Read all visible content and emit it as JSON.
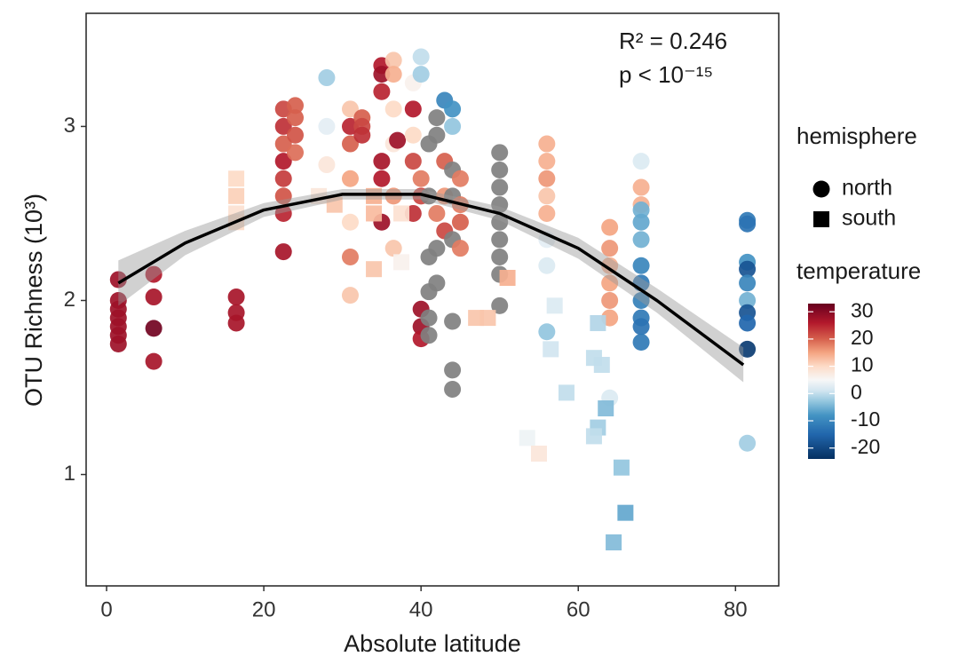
{
  "chart_data": {
    "type": "scatter",
    "annotation": [
      "R² = 0.246",
      "p < 10⁻¹⁵"
    ],
    "x_label": "Absolute latitude",
    "y_label": "OTU Richness (10³)",
    "xlim": [
      -2.6,
      85.5
    ],
    "xticks": [
      0,
      20,
      40,
      60,
      80
    ],
    "ylim": [
      0.36,
      3.65
    ],
    "yticks": [
      1,
      2,
      3
    ],
    "legend_title": "hemisphere",
    "na_color": "#808080",
    "series": [
      {
        "name": "north",
        "shape": "circle",
        "x": [
          1.5,
          1.5,
          1.5,
          1.5,
          1.5,
          1.5,
          1.5,
          6,
          6,
          6,
          6,
          16.5,
          16.5,
          16.5,
          22.5,
          22.5,
          22.5,
          22.5,
          22.5,
          22.5,
          22.5,
          22.5,
          24,
          24,
          24,
          24,
          28,
          28,
          28,
          31,
          31,
          31,
          31,
          31,
          31,
          31,
          32.5,
          32.5,
          32.5,
          35,
          35,
          35,
          35,
          35,
          35,
          36.5,
          36.5,
          36.5,
          36.5,
          36.5,
          36.5,
          37,
          39,
          39,
          39,
          39,
          39,
          40,
          40,
          40,
          40,
          40,
          40,
          40,
          41,
          41,
          41,
          41,
          41,
          41,
          42,
          42,
          42,
          42,
          42,
          43,
          43,
          43,
          43,
          44,
          44,
          44,
          44,
          44,
          44,
          44,
          44,
          45,
          45,
          45,
          45,
          50,
          50,
          50,
          50,
          50,
          50,
          50,
          50,
          50,
          56,
          56,
          56,
          56,
          56,
          56,
          56,
          56,
          64,
          64,
          64,
          64,
          64,
          64,
          64,
          68,
          68,
          68,
          68,
          68,
          68,
          68,
          68,
          68,
          68,
          68,
          68,
          81.5,
          81.5,
          81.5,
          81.5,
          81.5,
          81.5,
          81.5,
          81.5,
          81.5,
          81.5
        ],
        "values": [
          2.12,
          2.0,
          1.95,
          1.9,
          1.85,
          1.8,
          1.75,
          2.15,
          2.02,
          1.84,
          1.65,
          2.02,
          1.93,
          1.87,
          3.1,
          3.0,
          2.9,
          2.8,
          2.7,
          2.6,
          2.5,
          2.28,
          3.12,
          3.05,
          2.95,
          2.85,
          3.28,
          3.0,
          2.78,
          3.1,
          3.0,
          2.9,
          2.7,
          2.45,
          2.25,
          2.03,
          3.05,
          3.0,
          2.95,
          3.35,
          3.3,
          3.2,
          2.8,
          2.7,
          2.45,
          3.38,
          3.3,
          3.1,
          2.9,
          2.6,
          2.3,
          2.92,
          3.25,
          3.1,
          2.95,
          2.8,
          2.5,
          3.4,
          3.3,
          2.7,
          2.6,
          1.95,
          1.85,
          1.78,
          2.9,
          2.6,
          2.25,
          2.05,
          1.9,
          1.8,
          3.05,
          2.95,
          2.5,
          2.3,
          2.1,
          3.15,
          2.8,
          2.6,
          2.4,
          3.1,
          3.0,
          2.75,
          2.6,
          2.35,
          1.88,
          1.6,
          1.49,
          2.7,
          2.55,
          2.45,
          2.3,
          2.85,
          2.75,
          2.65,
          2.55,
          2.45,
          2.35,
          2.25,
          2.15,
          1.97,
          2.9,
          2.8,
          2.7,
          2.6,
          2.5,
          2.35,
          2.2,
          1.82,
          2.42,
          2.3,
          2.2,
          2.1,
          2.0,
          1.9,
          1.44,
          2.8,
          2.65,
          2.55,
          2.52,
          2.45,
          2.35,
          2.2,
          2.1,
          2.0,
          1.9,
          1.85,
          1.76,
          2.46,
          2.44,
          2.22,
          2.18,
          2.1,
          2.0,
          1.93,
          1.87,
          1.72,
          1.18
        ],
        "temperature": [
          28,
          28,
          28,
          28,
          28,
          28,
          28,
          26,
          27,
          32,
          27,
          27,
          27,
          27,
          22,
          24,
          20,
          26,
          23,
          21,
          25,
          27,
          20,
          20,
          21,
          19,
          -2,
          3,
          8,
          12,
          25,
          20,
          15,
          10,
          18,
          12,
          20,
          22,
          24,
          26,
          28,
          25,
          27,
          26,
          28,
          12,
          14,
          10,
          8,
          16,
          12,
          28,
          6,
          26,
          10,
          22,
          24,
          0,
          -2,
          18,
          22,
          28,
          28,
          26,
          null,
          null,
          null,
          null,
          null,
          null,
          null,
          null,
          18,
          null,
          null,
          -10,
          20,
          16,
          22,
          -8,
          -3,
          null,
          null,
          null,
          null,
          null,
          null,
          18,
          18,
          20,
          18,
          null,
          null,
          null,
          null,
          null,
          null,
          null,
          null,
          null,
          14,
          14,
          16,
          12,
          14,
          3,
          2,
          -3,
          15,
          16,
          14,
          15,
          16,
          15,
          2,
          2,
          14,
          14,
          -5,
          -6,
          -5,
          -10,
          -12,
          -11,
          -12,
          -13,
          -12,
          -12,
          -13,
          -8,
          -18,
          -10,
          -5,
          -18,
          -15,
          -22,
          -2
        ]
      },
      {
        "name": "south",
        "shape": "square",
        "x": [
          16.5,
          16.5,
          16.5,
          16.5,
          27,
          29,
          34,
          34,
          34,
          37.5,
          37.5,
          47,
          48.5,
          51,
          53.5,
          55,
          57,
          56.5,
          58.5,
          62,
          63,
          62.5,
          63.5,
          62.5,
          62,
          65.5,
          66,
          64.5
        ],
        "values": [
          2.7,
          2.6,
          2.5,
          2.45,
          2.6,
          2.55,
          2.6,
          2.5,
          2.18,
          2.22,
          2.5,
          1.9,
          1.9,
          2.13,
          1.21,
          1.12,
          1.97,
          1.72,
          1.47,
          1.67,
          1.63,
          1.87,
          1.38,
          1.27,
          1.22,
          1.04,
          0.78,
          0.61
        ],
        "temperature": [
          10,
          11,
          9,
          10,
          8,
          12,
          14,
          13,
          12,
          6,
          9,
          12,
          12,
          14,
          4,
          8,
          2,
          1,
          0,
          0,
          0,
          -1,
          -4,
          -2,
          0,
          -3,
          -6,
          -4
        ]
      }
    ],
    "fit": {
      "x": [
        1.5,
        10,
        20,
        30,
        40,
        50,
        60,
        70,
        81
      ],
      "values": [
        2.1,
        2.33,
        2.52,
        2.61,
        2.61,
        2.5,
        2.3,
        2.0,
        1.63
      ],
      "lower": [
        1.97,
        2.26,
        2.48,
        2.58,
        2.58,
        2.46,
        2.24,
        1.93,
        1.53
      ],
      "upper": [
        2.23,
        2.4,
        2.56,
        2.64,
        2.64,
        2.54,
        2.36,
        2.07,
        1.73
      ]
    },
    "colorbar": {
      "title": "temperature",
      "lim": [
        -24,
        33
      ],
      "ticks": [
        -20,
        -10,
        0,
        10,
        20,
        30
      ],
      "stops": [
        -24,
        -15,
        -8,
        -3,
        1,
        5,
        10,
        15,
        20,
        26,
        33
      ],
      "colors": [
        "#053061",
        "#2166ac",
        "#4393c3",
        "#92c5de",
        "#d1e5f0",
        "#f7f7f7",
        "#fddbc7",
        "#f4a582",
        "#d6604d",
        "#b2182b",
        "#67001f"
      ]
    }
  }
}
